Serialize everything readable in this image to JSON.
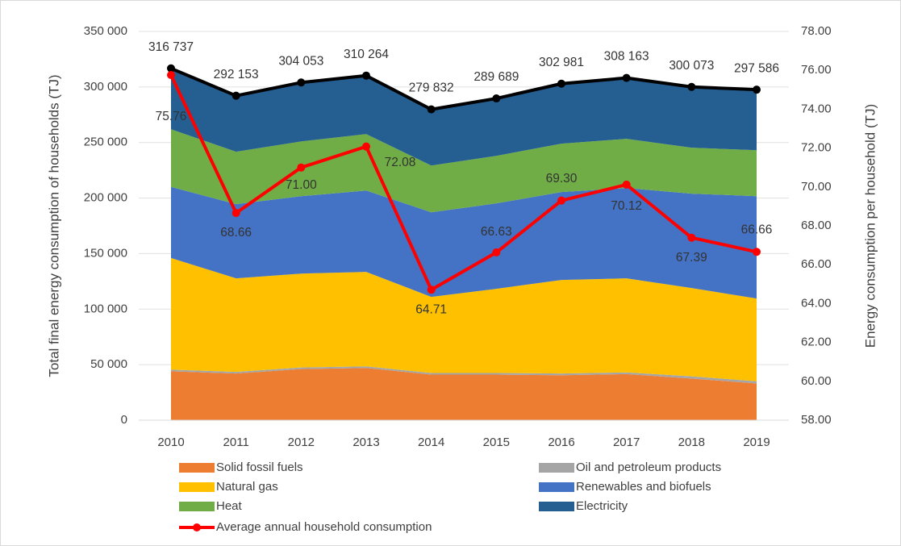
{
  "chart_data": {
    "type": "stacked_area",
    "y_label": "Total final energy consumption of households (TJ)",
    "y2_label": "Energy consumption per household (TJ)",
    "categories": [
      "2010",
      "2011",
      "2012",
      "2013",
      "2014",
      "2015",
      "2016",
      "2017",
      "2018",
      "2019"
    ],
    "ylim": [
      0,
      350000
    ],
    "yticks": [
      0,
      {
        "value": 50000,
        "label": "50 000"
      },
      {
        "value": 100000,
        "label": "100 000"
      },
      {
        "value": 150000,
        "label": "150 000"
      },
      {
        "value": 200000,
        "label": "200 000"
      },
      {
        "value": 250000,
        "label": "250 000"
      },
      {
        "value": 300000,
        "label": "300 000"
      },
      {
        "value": 350000,
        "label": "350 000"
      }
    ],
    "y2lim": [
      58,
      78
    ],
    "y2ticks": [
      {
        "value": 58,
        "label": "58.00"
      },
      {
        "value": 60,
        "label": "60.00"
      },
      {
        "value": 62,
        "label": "62.00"
      },
      {
        "value": 64,
        "label": "64.00"
      },
      {
        "value": 66,
        "label": "66.00"
      },
      {
        "value": 68,
        "label": "68.00"
      },
      {
        "value": 70,
        "label": "70.00"
      },
      {
        "value": 72,
        "label": "72.00"
      },
      {
        "value": 74,
        "label": "74.00"
      },
      {
        "value": 76,
        "label": "76.00"
      },
      {
        "value": 78,
        "label": "78.00"
      }
    ],
    "series": [
      {
        "name": "Solid fossil fuels",
        "color": "#ed7d31",
        "values": [
          44000,
          42000,
          46000,
          47000,
          41000,
          41000,
          40500,
          41500,
          37500,
          33000
        ]
      },
      {
        "name": "Oil and petroleum products",
        "color": "#a5a5a5",
        "values": [
          1500,
          1500,
          1500,
          1500,
          1500,
          1500,
          1500,
          1500,
          2000,
          2000
        ]
      },
      {
        "name": "Natural gas",
        "color": "#ffc000",
        "values": [
          100500,
          84200,
          84500,
          85000,
          68500,
          75800,
          84300,
          84700,
          79500,
          74600
        ]
      },
      {
        "name": "Renewables and biofuels",
        "color": "#4472c4",
        "values": [
          64000,
          66800,
          69700,
          73300,
          76200,
          76900,
          79100,
          81300,
          85000,
          92100
        ]
      },
      {
        "name": "Heat",
        "color": "#70ad47",
        "values": [
          52000,
          47200,
          49300,
          50800,
          42100,
          42800,
          43600,
          44300,
          41300,
          41400
        ]
      },
      {
        "name": "Electricity",
        "color": "#255e91",
        "values": [
          54737,
          50453,
          53053,
          52664,
          50532,
          51689,
          53981,
          54863,
          54773,
          54486
        ]
      },
      {
        "name": "Average annual household consumption",
        "color": "#ff0000",
        "axis": "y2",
        "values": [
          75.76,
          68.66,
          71.0,
          72.08,
          64.71,
          66.63,
          69.3,
          70.12,
          67.39,
          66.66
        ],
        "value_labels": [
          "75.76",
          "68.66",
          "71.00",
          "72.08",
          "64.71",
          "66.63",
          "69.30",
          "70.12",
          "67.39",
          "66.66"
        ]
      }
    ],
    "totals": {
      "color": "#000000",
      "values": [
        316737,
        292153,
        304053,
        310264,
        279832,
        289689,
        302981,
        308163,
        300073,
        297586
      ],
      "value_labels": [
        "316 737",
        "292 153",
        "304 053",
        "310 264",
        "279 832",
        "289 689",
        "302 981",
        "308 163",
        "300 073",
        "297 586"
      ]
    }
  }
}
